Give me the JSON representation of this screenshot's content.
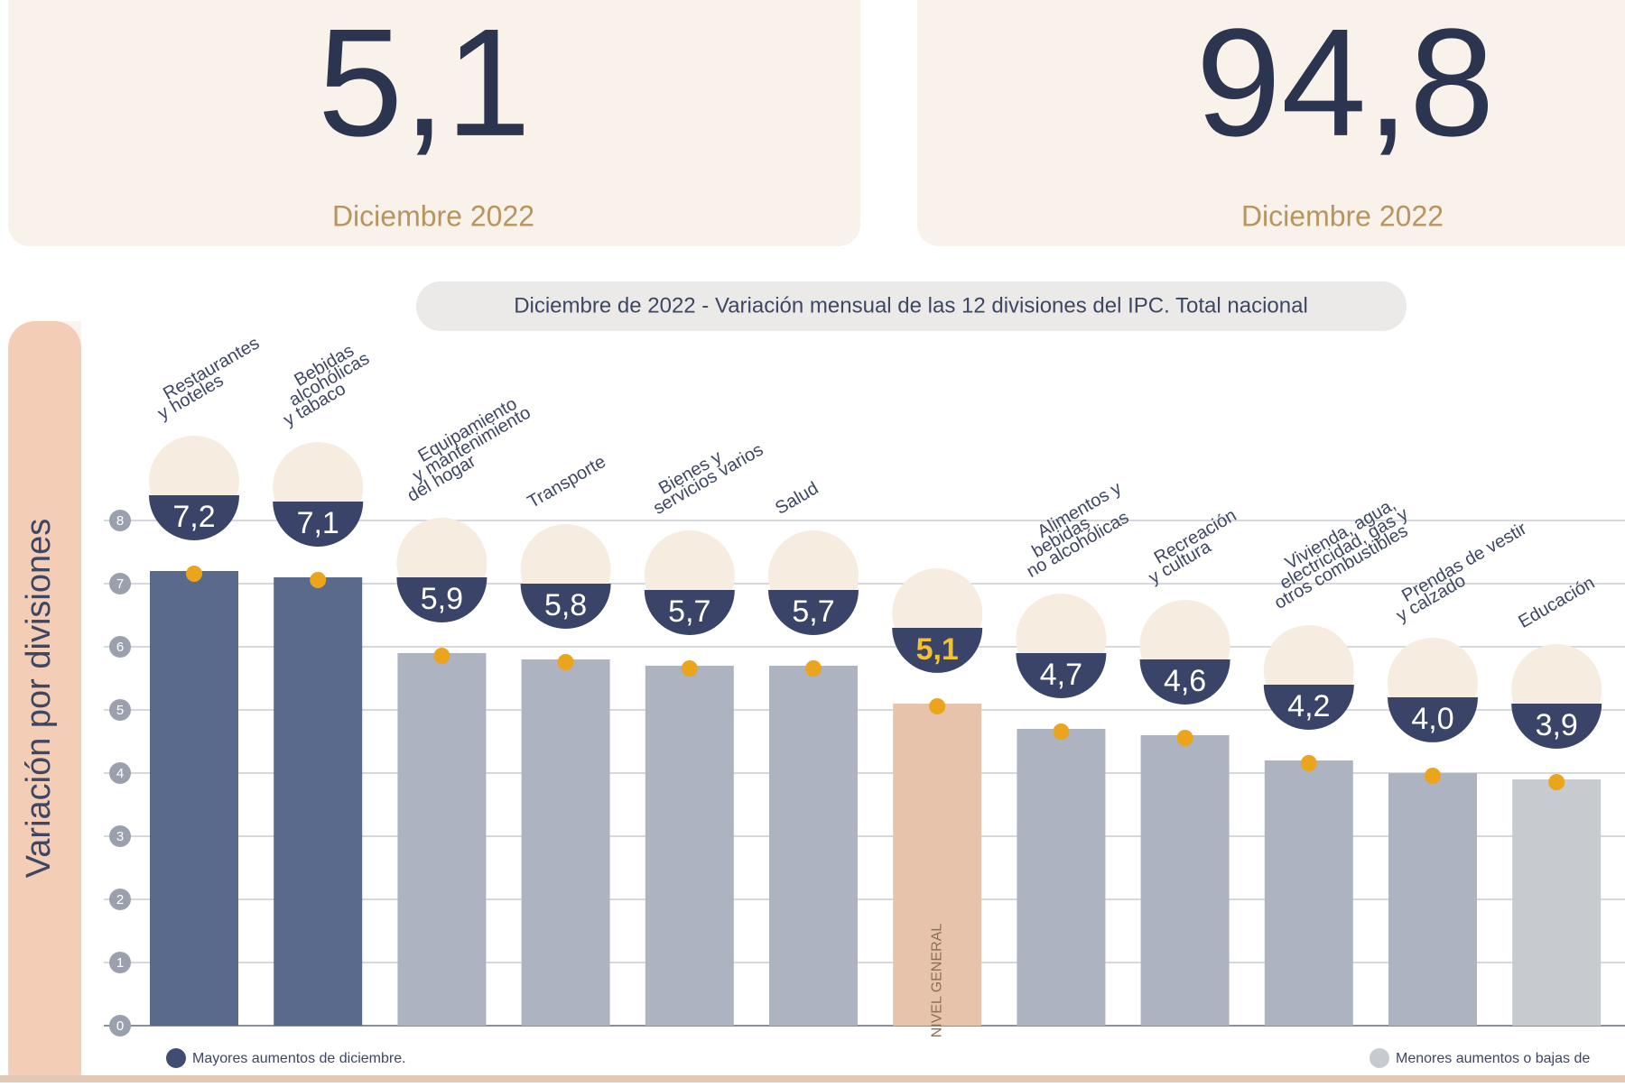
{
  "cards": [
    {
      "value": "5,1",
      "label": "Diciembre 2022"
    },
    {
      "value": "94,8",
      "label": "Diciembre 2022"
    }
  ],
  "chart_data": {
    "type": "bar",
    "title": "Diciembre de 2022 - Variación mensual de las 12 divisiones del IPC. Total nacional",
    "y_label": "Variación por divisiones",
    "bar_note": "NIVEL GENERAL",
    "categories": [
      [
        "Restaurantes",
        "y hoteles"
      ],
      [
        "Bebidas",
        "alcohólicas",
        "y tabaco"
      ],
      [
        "Equipamiento",
        "y mantenimiento",
        "del hogar"
      ],
      [
        "Transporte"
      ],
      [
        "Bienes y",
        "servicios varios"
      ],
      [
        "Salud"
      ],
      [],
      [
        "Alimentos y",
        "bebidas",
        "no alcohólicas"
      ],
      [
        "Recreación",
        "y cultura"
      ],
      [
        "Vivienda, agua,",
        "electricidad, gas y",
        "otros combustibles"
      ],
      [
        "Prendas de vestir",
        "y calzado"
      ],
      [
        "Educación"
      ]
    ],
    "values": [
      7.2,
      7.1,
      5.9,
      5.8,
      5.7,
      5.7,
      5.1,
      4.7,
      4.6,
      4.2,
      4.0,
      3.9
    ],
    "value_labels": [
      "7,2",
      "7,1",
      "5,9",
      "5,8",
      "5,7",
      "5,7",
      "5,1",
      "4,7",
      "4,6",
      "4,2",
      "4,0",
      "3,9"
    ],
    "colors": [
      "#5a6a8c",
      "#5a6a8c",
      "#adb3c0",
      "#adb3c0",
      "#adb3c0",
      "#adb3c0",
      "#e8c3ab",
      "#adb3c0",
      "#adb3c0",
      "#adb3c0",
      "#adb3c0",
      "#c7cacf"
    ],
    "ylim": [
      0,
      8
    ],
    "yticks": [
      0,
      1,
      2,
      3,
      4,
      5,
      6,
      7,
      8
    ],
    "grid": true,
    "legend": [
      {
        "label": "Mayores aumentos de diciembre.",
        "color": "#3f4d72"
      },
      {
        "label": "Menores aumentos o bajas de",
        "color": "#c7cacf"
      }
    ]
  }
}
